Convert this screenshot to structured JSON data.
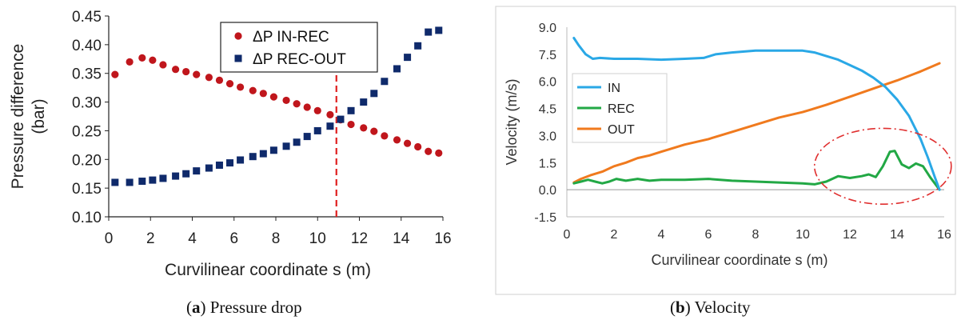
{
  "chart_data": [
    {
      "type": "scatter",
      "caption_label": "a",
      "caption_text": "Pressure drop",
      "xlabel": "Curvilinear coordinate s (m)",
      "ylabel_line1": "Pressure difference",
      "ylabel_line2": "(bar)",
      "xlim": [
        0,
        16
      ],
      "ylim": [
        0.1,
        0.45
      ],
      "xticks": [
        0,
        2,
        4,
        6,
        8,
        10,
        12,
        14,
        16
      ],
      "yticks": [
        "0.10",
        "0.15",
        "0.20",
        "0.25",
        "0.30",
        "0.35",
        "0.40",
        "0.45"
      ],
      "legend_position": "top-right",
      "marker_line": {
        "x": 10.9,
        "color": "#e02020",
        "style": "dashed"
      },
      "series": [
        {
          "name": "ΔP IN-REC",
          "marker": "circle",
          "color": "#c0161c",
          "x": [
            0.3,
            1.0,
            1.6,
            2.1,
            2.6,
            3.2,
            3.7,
            4.2,
            4.8,
            5.3,
            5.8,
            6.3,
            6.9,
            7.4,
            7.9,
            8.5,
            9.0,
            9.5,
            10.0,
            10.6,
            11.1,
            11.6,
            12.2,
            12.7,
            13.2,
            13.8,
            14.3,
            14.8,
            15.3,
            15.8
          ],
          "y": [
            0.348,
            0.37,
            0.377,
            0.373,
            0.365,
            0.357,
            0.353,
            0.348,
            0.343,
            0.338,
            0.332,
            0.326,
            0.32,
            0.315,
            0.309,
            0.303,
            0.297,
            0.291,
            0.285,
            0.278,
            0.269,
            0.261,
            0.255,
            0.249,
            0.241,
            0.234,
            0.228,
            0.222,
            0.214,
            0.211
          ]
        },
        {
          "name": "ΔP REC-OUT",
          "marker": "square",
          "color": "#0f2a6b",
          "x": [
            0.3,
            1.0,
            1.6,
            2.1,
            2.6,
            3.2,
            3.7,
            4.2,
            4.8,
            5.3,
            5.8,
            6.3,
            6.9,
            7.4,
            7.9,
            8.5,
            9.0,
            9.5,
            10.0,
            10.6,
            11.1,
            11.6,
            12.2,
            12.7,
            13.2,
            13.8,
            14.3,
            14.8,
            15.3,
            15.8
          ],
          "y": [
            0.16,
            0.16,
            0.162,
            0.164,
            0.167,
            0.171,
            0.175,
            0.18,
            0.185,
            0.19,
            0.194,
            0.199,
            0.205,
            0.21,
            0.216,
            0.223,
            0.23,
            0.24,
            0.25,
            0.258,
            0.27,
            0.285,
            0.3,
            0.315,
            0.336,
            0.358,
            0.378,
            0.398,
            0.422,
            0.425
          ]
        }
      ]
    },
    {
      "type": "line",
      "caption_label": "b",
      "caption_text": "Velocity",
      "xlabel": "Curvilinear coordinate s (m)",
      "ylabel": "Velocity  (m/s)",
      "xlim": [
        0,
        16
      ],
      "ylim": [
        -1.5,
        9.0
      ],
      "xticks": [
        0,
        2,
        4,
        6,
        8,
        10,
        12,
        14,
        16
      ],
      "yticks": [
        "-1.5",
        "0.0",
        "1.5",
        "3.0",
        "4.5",
        "6.0",
        "7.5",
        "9.0"
      ],
      "legend_position": "left-middle",
      "highlight_ellipse": {
        "cx": 13.4,
        "cy": 1.3,
        "rx": 2.9,
        "ry": 2.1,
        "color": "#e03030",
        "style": "dash-dot"
      },
      "series": [
        {
          "name": "IN",
          "color": "#2aa8e6",
          "x": [
            0.3,
            0.5,
            0.8,
            1.1,
            1.4,
            2,
            3,
            4,
            5,
            5.8,
            6.3,
            7,
            8,
            9,
            10,
            10.5,
            11,
            11.5,
            12,
            12.5,
            13,
            13.5,
            14,
            14.5,
            15,
            15.3,
            15.6,
            15.8
          ],
          "y": [
            8.4,
            8.0,
            7.5,
            7.25,
            7.3,
            7.25,
            7.25,
            7.2,
            7.25,
            7.3,
            7.5,
            7.6,
            7.7,
            7.7,
            7.7,
            7.6,
            7.4,
            7.2,
            6.9,
            6.6,
            6.2,
            5.7,
            5.0,
            4.1,
            2.8,
            1.8,
            0.7,
            0.0
          ]
        },
        {
          "name": "REC",
          "color": "#22a845",
          "x": [
            0.3,
            0.6,
            0.9,
            1.2,
            1.5,
            1.8,
            2.1,
            2.5,
            3,
            3.5,
            4,
            5,
            6,
            7,
            8,
            9,
            10,
            10.5,
            11,
            11.5,
            12,
            12.5,
            12.8,
            13.1,
            13.4,
            13.7,
            13.9,
            14.2,
            14.5,
            14.8,
            15.1,
            15.4,
            15.8
          ],
          "y": [
            0.35,
            0.45,
            0.55,
            0.45,
            0.35,
            0.45,
            0.6,
            0.5,
            0.6,
            0.5,
            0.55,
            0.55,
            0.6,
            0.5,
            0.45,
            0.4,
            0.35,
            0.3,
            0.45,
            0.75,
            0.65,
            0.75,
            0.85,
            0.7,
            1.3,
            2.1,
            2.15,
            1.4,
            1.2,
            1.45,
            1.3,
            0.7,
            0.0
          ]
        },
        {
          "name": "OUT",
          "color": "#f07a1e",
          "x": [
            0.3,
            0.6,
            1,
            1.5,
            2,
            2.5,
            3,
            3.5,
            4,
            5,
            6,
            7,
            8,
            9,
            10,
            11,
            12,
            13,
            14,
            15,
            15.8
          ],
          "y": [
            0.4,
            0.6,
            0.8,
            1.0,
            1.3,
            1.5,
            1.75,
            1.9,
            2.1,
            2.5,
            2.8,
            3.2,
            3.6,
            4.0,
            4.3,
            4.7,
            5.15,
            5.6,
            6.05,
            6.55,
            7.0
          ]
        }
      ]
    }
  ]
}
